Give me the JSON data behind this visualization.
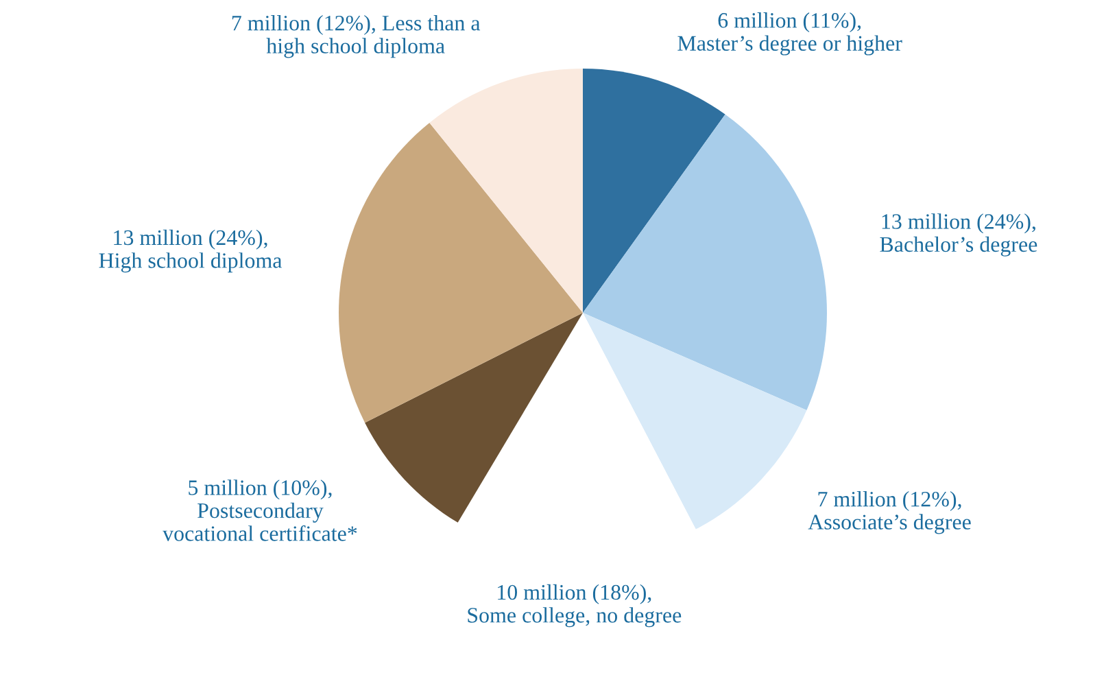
{
  "chart_data": {
    "type": "pie",
    "categories": [
      "Master’s degree or higher",
      "Bachelor’s degree",
      "Associate’s degree",
      "Some college, no degree",
      "Postsecondary\nvocational certificate*",
      "High school diploma",
      "Less than a\nhigh school diploma"
    ],
    "values": [
      11,
      24,
      12,
      18,
      10,
      24,
      12
    ],
    "value_labels": [
      "6 million (11%),",
      "13 million (24%),",
      "7 million (12%),",
      "10 million (18%),",
      "5 million (10%),",
      "13 million (24%),",
      "7 million (12%),"
    ],
    "colors": [
      "#2f709f",
      "#a8cdea",
      "#d8eaf8",
      "#ffffff",
      "#6b5133",
      "#c9a87e",
      "#faeadf"
    ],
    "legend": false
  }
}
